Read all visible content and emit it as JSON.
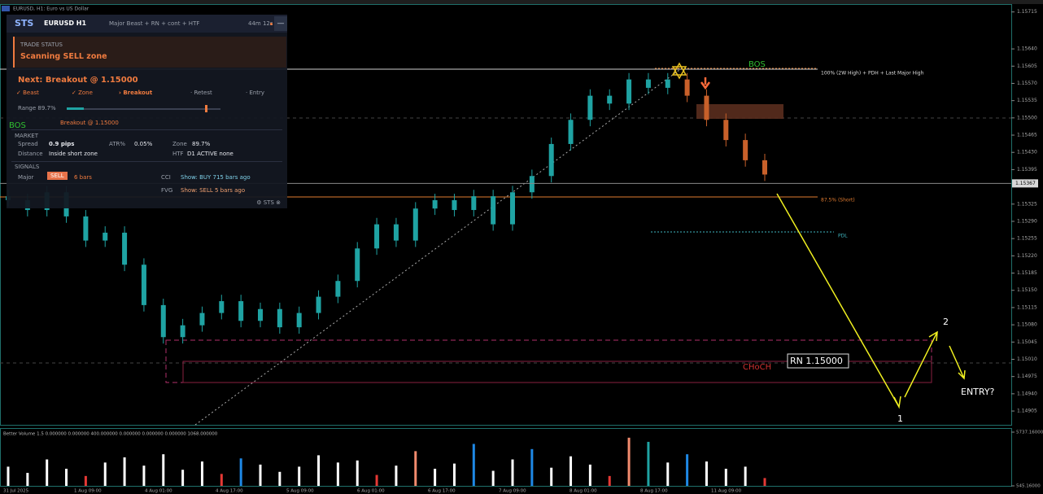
{
  "window": {
    "title": "EURUSD, H1: Euro vs US Dollar"
  },
  "panel": {
    "logo": "STS",
    "symbol": "EURUSD H1",
    "mode": "Major Beast + RN + cont + HTF",
    "timer": "44m 12s",
    "minimize": "—",
    "trade_status": {
      "label": "TRADE STATUS",
      "value": "Scanning SELL zone"
    },
    "next": "Next: Breakout @ 1.15000",
    "steps": [
      "✓ Beast",
      "✓ Zone",
      "› Breakout",
      "· Retest",
      "· Entry"
    ],
    "range": {
      "label": "Range 89.7%",
      "value": 89.7
    },
    "breakout_note": "Breakout @ 1.15000",
    "market": {
      "title": "MARKET",
      "rows": [
        [
          "Spread",
          "0.9 pips",
          "ATR%",
          "0.05%",
          "Zone",
          "89.7%"
        ],
        [
          "Distance",
          "Inside short zone",
          "HTF",
          "D1 ACTIVE none"
        ]
      ]
    },
    "signals": {
      "title": "SIGNALS",
      "rows": [
        [
          "Major",
          "SELL",
          "6 bars",
          "CCI",
          "Show: BUY 715 bars ago"
        ],
        [
          "FVG",
          "Show: SELL 5 bars ago"
        ]
      ]
    },
    "footer": "⚙ STS ⊗"
  },
  "chart_data": [
    {
      "type": "candlestick",
      "ylim": [
        1.14877,
        1.15731
      ],
      "yticks": [
        1.15715,
        {
          "value": 1.1564,
          "label": "1.15640"
        },
        1.15605,
        {
          "value": 1.1557,
          "label": "1.15570"
        },
        1.15535,
        {
          "value": 1.155,
          "label": "1.15500"
        },
        1.15465,
        {
          "value": 1.1543,
          "label": "1.15430"
        },
        1.15395,
        1.15325,
        {
          "value": 1.1529,
          "label": "1.15290"
        },
        1.15255,
        {
          "value": 1.1522,
          "label": "1.15220"
        },
        1.15185,
        {
          "value": 1.1515,
          "label": "1.15150"
        },
        1.15115,
        {
          "value": 1.1508,
          "label": "1.15080"
        },
        1.15045,
        {
          "value": 1.1501,
          "label": "1.15010"
        },
        1.14975,
        {
          "value": 1.1494,
          "label": "1.14940"
        },
        1.14905
      ],
      "current_price": 1.15367,
      "candles": [
        [
          1.15341,
          1.15354,
          1.1532,
          1.15333
        ],
        [
          1.15333,
          1.15346,
          1.153,
          1.15313
        ],
        [
          1.15313,
          1.15362,
          1.153,
          1.15349
        ],
        [
          1.15349,
          1.15362,
          1.15287,
          1.153
        ],
        [
          1.153,
          1.15313,
          1.15238,
          1.15251
        ],
        [
          1.15251,
          1.1528,
          1.15238,
          1.15267
        ],
        [
          1.15267,
          1.1528,
          1.15189,
          1.15202
        ],
        [
          1.15202,
          1.15215,
          1.15107,
          1.1512
        ],
        [
          1.1512,
          1.15133,
          1.15042,
          1.15055
        ],
        [
          1.15055,
          1.15092,
          1.15042,
          1.15079
        ],
        [
          1.15079,
          1.15117,
          1.15066,
          1.15104
        ],
        [
          1.15104,
          1.15141,
          1.15091,
          1.15128
        ],
        [
          1.15128,
          1.15141,
          1.15075,
          1.15088
        ],
        [
          1.15088,
          1.15125,
          1.15075,
          1.15112
        ],
        [
          1.15112,
          1.15125,
          1.15062,
          1.15075
        ],
        [
          1.15075,
          1.15117,
          1.15062,
          1.15104
        ],
        [
          1.15104,
          1.1515,
          1.15091,
          1.15137
        ],
        [
          1.15137,
          1.15182,
          1.15124,
          1.15169
        ],
        [
          1.15169,
          1.15248,
          1.15156,
          1.15235
        ],
        [
          1.15235,
          1.15297,
          1.15222,
          1.15284
        ],
        [
          1.15284,
          1.15297,
          1.15238,
          1.15251
        ],
        [
          1.15251,
          1.15329,
          1.15238,
          1.15316
        ],
        [
          1.15316,
          1.15346,
          1.15303,
          1.15333
        ],
        [
          1.15333,
          1.15346,
          1.153,
          1.15313
        ],
        [
          1.15313,
          1.15354,
          1.153,
          1.15341
        ],
        [
          1.15341,
          1.15354,
          1.15271,
          1.15284
        ],
        [
          1.15284,
          1.15362,
          1.15271,
          1.15349
        ],
        [
          1.15349,
          1.15395,
          1.15336,
          1.15382
        ],
        [
          1.15382,
          1.1546,
          1.15369,
          1.15447
        ],
        [
          1.15447,
          1.15509,
          1.15434,
          1.15496
        ],
        [
          1.15496,
          1.15558,
          1.15483,
          1.15545
        ],
        [
          1.15545,
          1.15558,
          1.15516,
          1.15529
        ],
        [
          1.15529,
          1.15591,
          1.15516,
          1.15578
        ],
        [
          1.15578,
          1.15591,
          1.15548,
          1.15561
        ],
        [
          1.15561,
          1.15591,
          1.15548,
          1.15578
        ],
        [
          1.15578,
          1.15591,
          1.15532,
          1.15545
        ],
        [
          1.15545,
          1.15558,
          1.15483,
          1.15496
        ],
        [
          1.15496,
          1.15509,
          1.15442,
          1.15455
        ],
        [
          1.15455,
          1.15468,
          1.15401,
          1.15414
        ],
        [
          1.15414,
          1.15427,
          1.15372,
          1.15385
        ]
      ],
      "colors": [
        "#1fa3a3",
        "#1fa3a3",
        "#1fa3a3",
        "#1fa3a3",
        "#1fa3a3",
        "#1fa3a3",
        "#1fa3a3",
        "#1fa3a3",
        "#1fa3a3",
        "#1fa3a3",
        "#1fa3a3",
        "#1fa3a3",
        "#1fa3a3",
        "#1fa3a3",
        "#1fa3a3",
        "#1fa3a3",
        "#1fa3a3",
        "#1fa3a3",
        "#1fa3a3",
        "#1fa3a3",
        "#1fa3a3",
        "#1fa3a3",
        "#1fa3a3",
        "#1fa3a3",
        "#1fa3a3",
        "#1fa3a3",
        "#1fa3a3",
        "#1fa3a3",
        "#1fa3a3",
        "#1fa3a3",
        "#1fa3a3",
        "#1fa3a3",
        "#1fa3a3",
        "#1fa3a3",
        "#1fa3a3",
        "#c8602a",
        "#c8602a",
        "#c8602a",
        "#c8602a",
        "#c8602a"
      ],
      "x_labels": [
        "31 Jul 2025",
        "1 Aug 09:00",
        "4 Aug 01:00",
        "4 Aug 17:00",
        "5 Aug 09:00",
        "6 Aug 01:00",
        "6 Aug 17:00",
        "7 Aug 09:00",
        "8 Aug 01:00",
        "8 Aug 17:00",
        "11 Aug 09:00"
      ],
      "annotations": {
        "bos_top": "BOS",
        "bos_left": "BOS",
        "level_high": "100% (2W High) + PDH + Last Major High",
        "level_short": "87.5% (Short)",
        "pdl": "PDL",
        "rn": "RN 1.15000",
        "choch": "CHoCH",
        "wave_1": "1",
        "wave_2": "2",
        "entry": "ENTRY?"
      }
    },
    {
      "type": "bar",
      "title": "Better Volume 1.5 0.000000 0.000000 400.000000 0.000000 0.000000 0.000000 1068.000000",
      "ylim": [
        545.16,
        5737.16
      ],
      "yticks": [
        {
          "value": 5737.16,
          "label": "5737.16000"
        },
        {
          "value": 545.16,
          "label": "545.16000"
        }
      ],
      "values": [
        2400,
        1800,
        3100,
        2200,
        1500,
        2800,
        3300,
        2500,
        3600,
        2100,
        2900,
        1700,
        3200,
        2600,
        1900,
        2400,
        3500,
        2800,
        3000,
        1600,
        2500,
        3900,
        2200,
        2700,
        4600,
        2000,
        3100,
        4100,
        2300,
        3400,
        2600,
        1500,
        5200,
        4800,
        2800,
        3600,
        2900,
        2200,
        2400,
        1300
      ],
      "colors": [
        "#ffffff",
        "#ffffff",
        "#ffffff",
        "#ffffff",
        "#e53935",
        "#ffffff",
        "#ffffff",
        "#ffffff",
        "#ffffff",
        "#ffffff",
        "#ffffff",
        "#e53935",
        "#1e88e5",
        "#ffffff",
        "#ffffff",
        "#ffffff",
        "#ffffff",
        "#ffffff",
        "#ffffff",
        "#e53935",
        "#ffffff",
        "#f28b6e",
        "#ffffff",
        "#ffffff",
        "#1e88e5",
        "#ffffff",
        "#ffffff",
        "#1e88e5",
        "#ffffff",
        "#ffffff",
        "#ffffff",
        "#e53935",
        "#f28b6e",
        "#1fa3a3",
        "#ffffff",
        "#1e88e5",
        "#ffffff",
        "#ffffff",
        "#ffffff",
        "#e53935"
      ]
    }
  ]
}
